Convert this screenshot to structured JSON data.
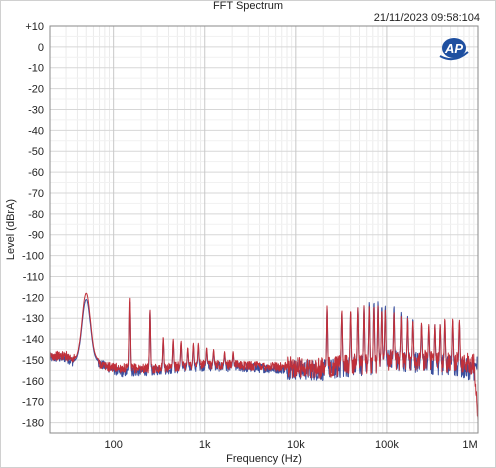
{
  "header": {
    "title": "FFT Spectrum",
    "timestamp": "21/11/2023 09:58:104",
    "logo_text": "AP"
  },
  "chart_data": {
    "type": "line",
    "title": "FFT Spectrum",
    "xlabel": "Frequency (Hz)",
    "ylabel": "Level (dBrA)",
    "x_scale": "log",
    "xlim": [
      20,
      1000000
    ],
    "ylim": [
      -185,
      10
    ],
    "grid": true,
    "x_ticks": [
      {
        "value": 100,
        "label": "100"
      },
      {
        "value": 1000,
        "label": "1k"
      },
      {
        "value": 10000,
        "label": "10k"
      },
      {
        "value": 100000,
        "label": "100k"
      },
      {
        "value": 1000000,
        "label": "1M"
      }
    ],
    "y_ticks": [
      {
        "value": 10,
        "label": "+10"
      },
      {
        "value": 0,
        "label": "0"
      },
      {
        "value": -10,
        "label": "-10"
      },
      {
        "value": -20,
        "label": "-20"
      },
      {
        "value": -30,
        "label": "-30"
      },
      {
        "value": -40,
        "label": "-40"
      },
      {
        "value": -50,
        "label": "-50"
      },
      {
        "value": -60,
        "label": "-60"
      },
      {
        "value": -70,
        "label": "-70"
      },
      {
        "value": -80,
        "label": "-80"
      },
      {
        "value": -90,
        "label": "-90"
      },
      {
        "value": -100,
        "label": "-100"
      },
      {
        "value": -110,
        "label": "-110"
      },
      {
        "value": -120,
        "label": "-120"
      },
      {
        "value": -130,
        "label": "-130"
      },
      {
        "value": -140,
        "label": "-140"
      },
      {
        "value": -150,
        "label": "-150"
      },
      {
        "value": -160,
        "label": "-160"
      },
      {
        "value": -170,
        "label": "-170"
      },
      {
        "value": -180,
        "label": "-180"
      }
    ],
    "series": [
      {
        "color": "#3a4f9e",
        "floor": [
          [
            20,
            -149
          ],
          [
            30,
            -149
          ],
          [
            40,
            -152
          ],
          [
            60,
            -150
          ],
          [
            80,
            -153
          ],
          [
            120,
            -156
          ],
          [
            300,
            -155
          ],
          [
            1000,
            -153
          ],
          [
            5000,
            -154
          ],
          [
            20000,
            -155
          ],
          [
            40000,
            -153
          ],
          [
            70000,
            -152
          ],
          [
            100000,
            -150
          ],
          [
            200000,
            -151
          ],
          [
            500000,
            -153
          ],
          [
            900000,
            -155
          ],
          [
            1000000,
            -152
          ]
        ],
        "peaks": [
          [
            50,
            -121
          ],
          [
            150,
            -122
          ],
          [
            250,
            -126
          ],
          [
            350,
            -140
          ],
          [
            450,
            -141
          ],
          [
            550,
            -142
          ],
          [
            650,
            -145
          ],
          [
            750,
            -143
          ],
          [
            850,
            -143
          ],
          [
            1050,
            -145
          ],
          [
            1250,
            -146
          ],
          [
            1650,
            -147
          ],
          [
            2050,
            -147
          ],
          [
            22000,
            -125
          ],
          [
            32000,
            -127
          ],
          [
            40000,
            -127
          ],
          [
            48000,
            -125
          ],
          [
            56000,
            -124
          ],
          [
            64000,
            -122
          ],
          [
            72000,
            -122
          ],
          [
            80000,
            -122
          ],
          [
            88000,
            -124
          ],
          [
            96000,
            -124
          ],
          [
            120000,
            -124
          ],
          [
            144000,
            -127
          ],
          [
            168000,
            -129
          ],
          [
            192000,
            -130
          ],
          [
            240000,
            -133
          ],
          [
            288000,
            -134
          ],
          [
            336000,
            -133
          ],
          [
            384000,
            -133
          ],
          [
            432000,
            -131
          ],
          [
            528000,
            -131
          ],
          [
            624000,
            -132
          ]
        ]
      },
      {
        "color": "#c0303a",
        "floor": [
          [
            20,
            -148
          ],
          [
            30,
            -148
          ],
          [
            40,
            -150
          ],
          [
            60,
            -150
          ],
          [
            80,
            -153
          ],
          [
            120,
            -154
          ],
          [
            300,
            -154
          ],
          [
            1000,
            -152
          ],
          [
            5000,
            -153
          ],
          [
            20000,
            -154
          ],
          [
            40000,
            -152
          ],
          [
            70000,
            -152
          ],
          [
            100000,
            -150
          ],
          [
            200000,
            -150
          ],
          [
            500000,
            -151
          ],
          [
            900000,
            -152
          ],
          [
            1000000,
            -180
          ]
        ],
        "peaks": [
          [
            50,
            -118
          ],
          [
            150,
            -120
          ],
          [
            250,
            -126
          ],
          [
            350,
            -139
          ],
          [
            450,
            -140
          ],
          [
            550,
            -141
          ],
          [
            650,
            -144
          ],
          [
            750,
            -142
          ],
          [
            850,
            -142
          ],
          [
            1050,
            -144
          ],
          [
            1250,
            -145
          ],
          [
            1650,
            -146
          ],
          [
            2050,
            -146
          ],
          [
            22000,
            -124
          ],
          [
            32000,
            -126
          ],
          [
            40000,
            -126
          ],
          [
            48000,
            -125
          ],
          [
            56000,
            -124
          ],
          [
            64000,
            -124
          ],
          [
            72000,
            -124
          ],
          [
            80000,
            -124
          ],
          [
            88000,
            -126
          ],
          [
            96000,
            -126
          ],
          [
            120000,
            -127
          ],
          [
            144000,
            -129
          ],
          [
            168000,
            -130
          ],
          [
            192000,
            -131
          ],
          [
            240000,
            -132
          ],
          [
            288000,
            -133
          ],
          [
            336000,
            -133
          ],
          [
            384000,
            -133
          ],
          [
            432000,
            -130
          ],
          [
            528000,
            -130
          ],
          [
            624000,
            -131
          ]
        ]
      }
    ]
  }
}
